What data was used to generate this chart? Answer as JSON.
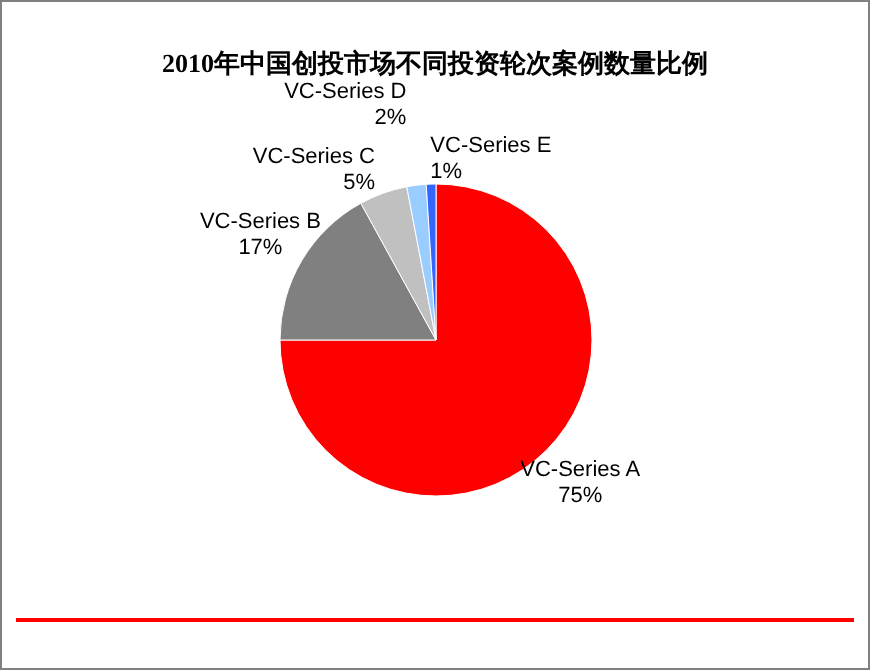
{
  "chart_data": {
    "type": "pie",
    "title": "2010年中国创投市场不同投资轮次案例数量比例",
    "categories": [
      "VC-Series A",
      "VC-Series B",
      "VC-Series C",
      "VC-Series D",
      "VC-Series E"
    ],
    "values": [
      75,
      17,
      5,
      2,
      1
    ],
    "value_labels": [
      "75%",
      "17%",
      "5%",
      "2%",
      "1%"
    ],
    "colors": [
      "#ff0000",
      "#808080",
      "#c0c0c0",
      "#99ccff",
      "#3366ff"
    ]
  }
}
